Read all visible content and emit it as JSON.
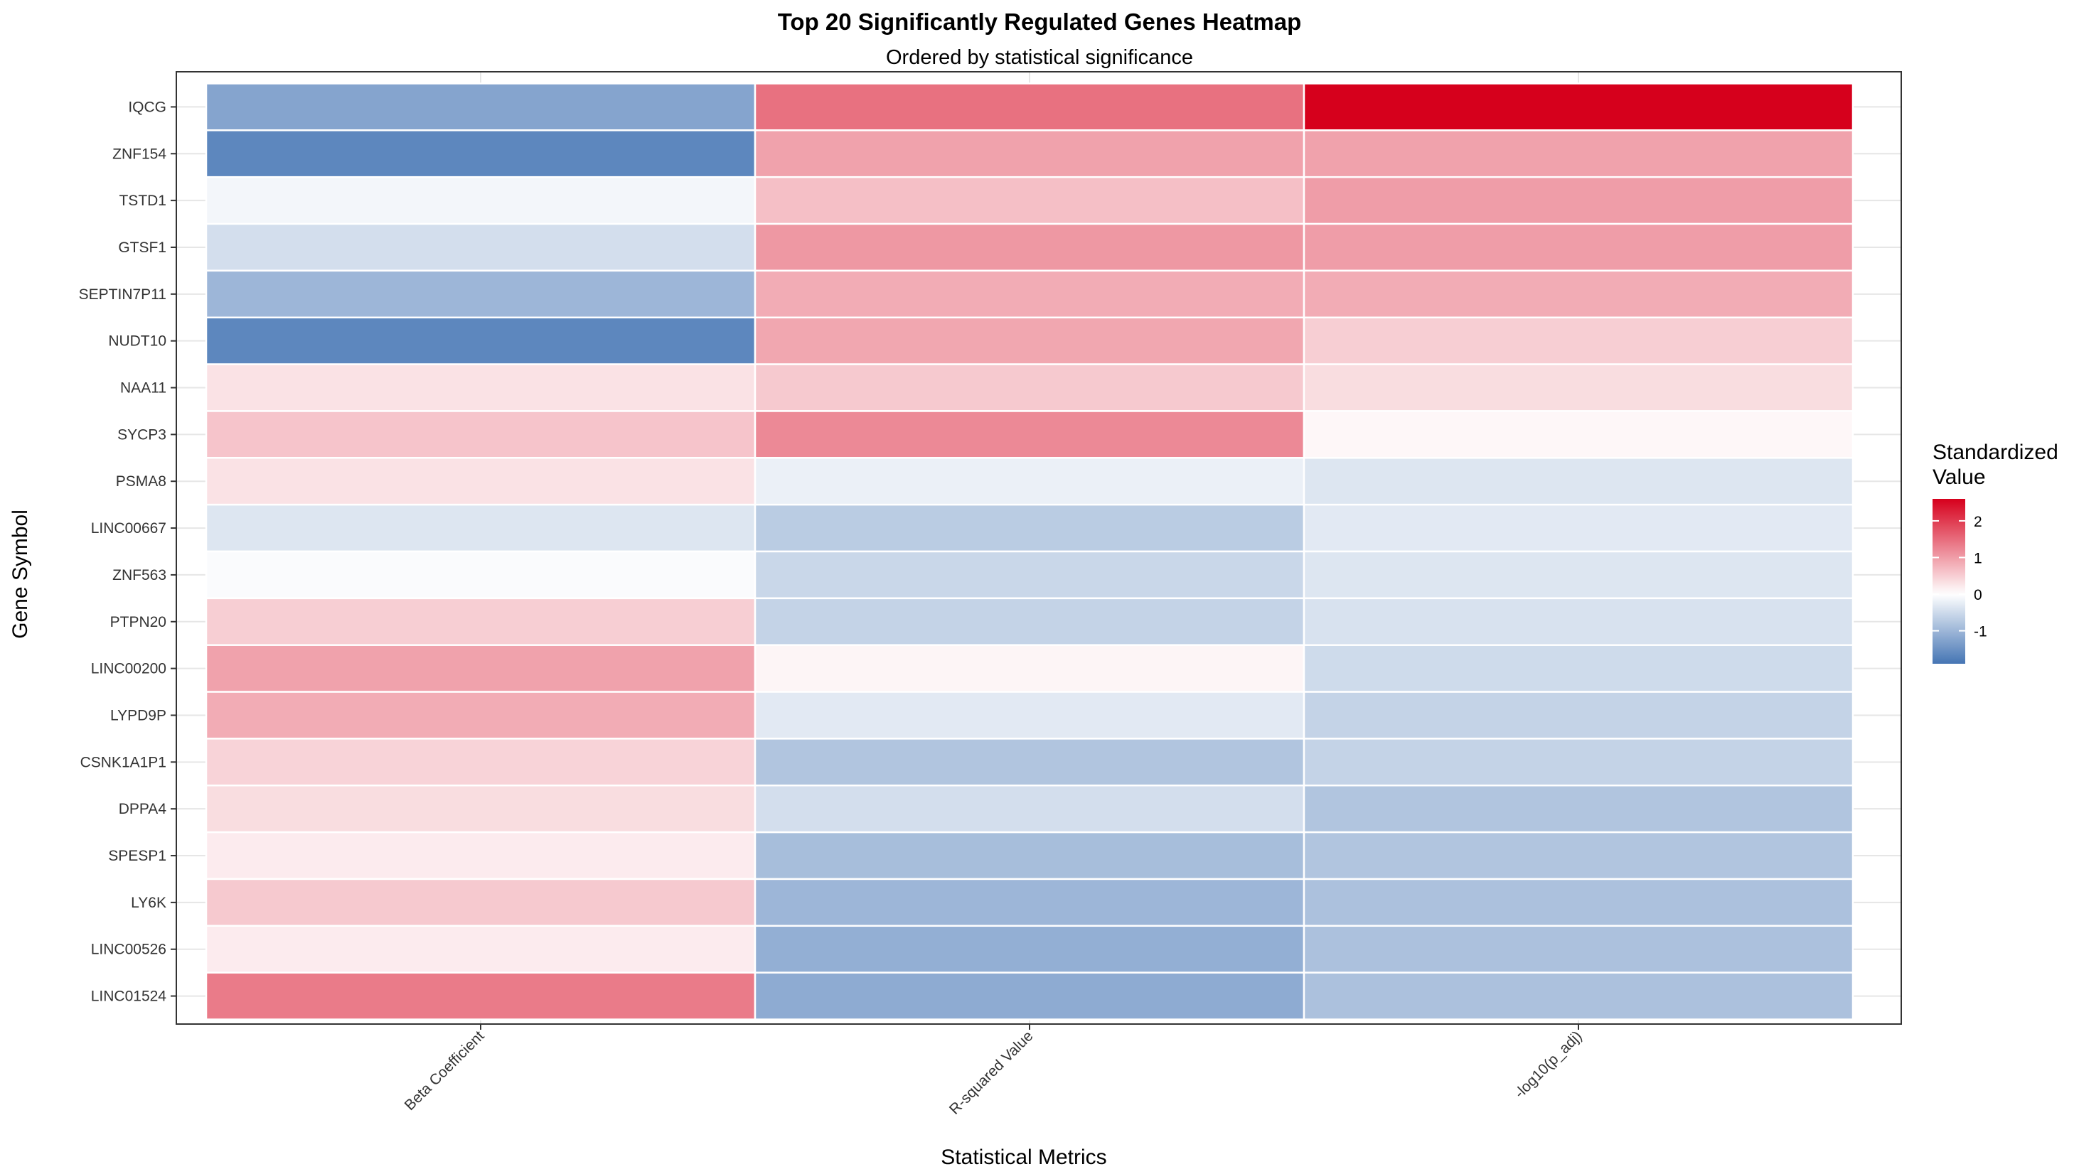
{
  "chart_data": {
    "type": "heatmap",
    "title": "Top 20 Significantly Regulated Genes Heatmap",
    "subtitle": "Ordered by statistical significance",
    "xlabel": "Statistical Metrics",
    "ylabel": "Gene Symbol",
    "x_categories": [
      "Beta Coefficient",
      "R-squared Value",
      "-log10(p_adj)"
    ],
    "y_categories": [
      "IQCG",
      "ZNF154",
      "TSTD1",
      "GTSF1",
      "SEPTIN7P11",
      "NUDT10",
      "NAA11",
      "SYCP3",
      "PSMA8",
      "LINC00667",
      "ZNF563",
      "PTPN20",
      "LINC00200",
      "LYPD9P",
      "CSNK1A1P1",
      "DPPA4",
      "SPESP1",
      "LY6K",
      "LINC00526",
      "LINC01524"
    ],
    "values": [
      [
        -1.25,
        1.45,
        2.6
      ],
      [
        -1.65,
        0.95,
        0.95
      ],
      [
        -0.12,
        0.65,
        1.0
      ],
      [
        -0.45,
        1.05,
        1.0
      ],
      [
        -1.0,
        0.85,
        0.85
      ],
      [
        -1.65,
        0.9,
        0.5
      ],
      [
        0.3,
        0.55,
        0.35
      ],
      [
        0.6,
        1.2,
        0.08
      ],
      [
        0.3,
        -0.2,
        -0.35
      ],
      [
        -0.35,
        -0.7,
        -0.3
      ],
      [
        -0.05,
        -0.55,
        -0.35
      ],
      [
        0.5,
        -0.6,
        -0.4
      ],
      [
        0.95,
        0.1,
        -0.5
      ],
      [
        0.85,
        -0.3,
        -0.6
      ],
      [
        0.45,
        -0.8,
        -0.6
      ],
      [
        0.35,
        -0.45,
        -0.8
      ],
      [
        0.2,
        -0.9,
        -0.8
      ],
      [
        0.55,
        -1.0,
        -0.85
      ],
      [
        0.2,
        -1.1,
        -0.85
      ],
      [
        1.35,
        -1.15,
        -0.85
      ]
    ],
    "color_scale": {
      "low": "#4575b4",
      "mid": "#ffffff",
      "high": "#d6001c",
      "min": -1.9,
      "max": 2.6
    },
    "legend": {
      "title_line1": "Standardized",
      "title_line2": "Value",
      "ticks": [
        2,
        1,
        0,
        -1
      ],
      "position": "right"
    },
    "grid": true
  }
}
